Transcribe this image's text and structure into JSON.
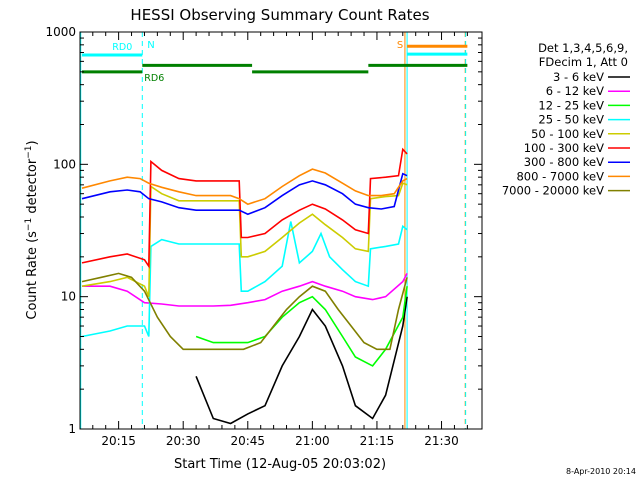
{
  "chart_data": {
    "type": "line",
    "title": "HESSI Observing Summary Count Rates",
    "xlabel": "Start Time (12-Aug-05 20:03:02)",
    "ylabel": "Count Rate (s⁻¹ detector⁻¹)",
    "ylabel_main": "Count Rate (s",
    "ylabel_sup1": "−1",
    "ylabel_mid": " detector",
    "ylabel_sup2": "−1",
    "ylabel_end": ")",
    "yscale": "log",
    "ylim": [
      1,
      1000
    ],
    "xlim_min": [
      3.03,
      68.4
    ],
    "xticks": [
      {
        "min": 12,
        "label": "20:15"
      },
      {
        "min": 27,
        "label": "20:30"
      },
      {
        "min": 42,
        "label": "20:45"
      },
      {
        "min": 57,
        "label": "21:00"
      },
      {
        "min": 72,
        "label": "21:15"
      },
      {
        "min": 87,
        "label": "21:30"
      }
    ],
    "yticks": [
      {
        "value": 1,
        "label": "1"
      },
      {
        "value": 10,
        "label": "10"
      },
      {
        "value": 100,
        "label": "100"
      },
      {
        "value": 1000,
        "label": "1000"
      }
    ],
    "legend_header": [
      "Det 1,3,4,5,6,9,",
      "FDecim 1, Att 0"
    ],
    "series": [
      {
        "name": "3 - 6 keV",
        "color": "#000000",
        "points": [
          [
            30,
            2.5
          ],
          [
            34,
            1.2
          ],
          [
            38,
            1.1
          ],
          [
            42,
            1.3
          ],
          [
            46,
            1.5
          ],
          [
            50,
            3
          ],
          [
            54,
            5
          ],
          [
            57,
            8
          ],
          [
            60,
            6
          ],
          [
            64,
            3
          ],
          [
            67,
            1.5
          ],
          [
            71,
            1.2
          ],
          [
            74,
            1.8
          ],
          [
            78,
            6
          ],
          [
            79,
            10
          ]
        ]
      },
      {
        "name": "6 - 12 keV",
        "color": "#ff00ff",
        "points": [
          [
            3.5,
            12
          ],
          [
            10,
            12
          ],
          [
            14,
            11
          ],
          [
            18,
            9
          ],
          [
            22,
            8.8
          ],
          [
            26,
            8.5
          ],
          [
            30,
            8.5
          ],
          [
            34,
            8.5
          ],
          [
            38,
            8.6
          ],
          [
            42,
            9
          ],
          [
            46,
            9.5
          ],
          [
            50,
            11
          ],
          [
            54,
            12
          ],
          [
            57,
            13
          ],
          [
            60,
            12
          ],
          [
            64,
            11
          ],
          [
            67,
            10
          ],
          [
            71,
            9.5
          ],
          [
            74,
            10
          ],
          [
            78,
            13
          ],
          [
            79,
            15
          ]
        ]
      },
      {
        "name": "12 - 25 keV",
        "color": "#00ff00",
        "points": [
          [
            30,
            5
          ],
          [
            34,
            4.5
          ],
          [
            38,
            4.5
          ],
          [
            42,
            4.5
          ],
          [
            46,
            5
          ],
          [
            50,
            7
          ],
          [
            54,
            9
          ],
          [
            57,
            10
          ],
          [
            60,
            8
          ],
          [
            64,
            5
          ],
          [
            67,
            3.5
          ],
          [
            71,
            3
          ],
          [
            74,
            4
          ],
          [
            78,
            7
          ],
          [
            79,
            12
          ]
        ]
      },
      {
        "name": "25 - 50 keV",
        "color": "#00ffff",
        "points": [
          [
            3.5,
            5
          ],
          [
            10,
            5.5
          ],
          [
            14,
            6
          ],
          [
            18,
            6
          ],
          [
            19,
            5
          ],
          [
            19.5,
            24
          ],
          [
            22,
            27
          ],
          [
            26,
            25
          ],
          [
            30,
            25
          ],
          [
            34,
            25
          ],
          [
            38,
            25
          ],
          [
            40,
            25
          ],
          [
            40.5,
            11
          ],
          [
            42,
            11
          ],
          [
            46,
            13
          ],
          [
            50,
            17
          ],
          [
            52,
            37
          ],
          [
            54,
            18
          ],
          [
            57,
            22
          ],
          [
            59,
            30
          ],
          [
            61,
            20
          ],
          [
            64,
            16
          ],
          [
            67,
            13
          ],
          [
            70,
            12
          ],
          [
            70.5,
            23
          ],
          [
            74,
            24
          ],
          [
            77,
            25
          ],
          [
            78,
            34
          ],
          [
            79,
            32
          ]
        ]
      },
      {
        "name": "50 - 100 keV",
        "color": "#cccc00",
        "points": [
          [
            3.5,
            12
          ],
          [
            10,
            13
          ],
          [
            14,
            14
          ],
          [
            18,
            12
          ],
          [
            19,
            10
          ],
          [
            19.5,
            68
          ],
          [
            22,
            60
          ],
          [
            26,
            53
          ],
          [
            30,
            53
          ],
          [
            34,
            53
          ],
          [
            38,
            53
          ],
          [
            40,
            53
          ],
          [
            40.5,
            20
          ],
          [
            42,
            20
          ],
          [
            46,
            22
          ],
          [
            50,
            28
          ],
          [
            54,
            36
          ],
          [
            57,
            42
          ],
          [
            60,
            35
          ],
          [
            64,
            28
          ],
          [
            67,
            23
          ],
          [
            70,
            22
          ],
          [
            70.5,
            55
          ],
          [
            74,
            57
          ],
          [
            77,
            58
          ],
          [
            78,
            72
          ],
          [
            79,
            70
          ]
        ]
      },
      {
        "name": "100 - 300 keV",
        "color": "#ff0000",
        "points": [
          [
            3.5,
            18
          ],
          [
            10,
            20
          ],
          [
            14,
            21
          ],
          [
            18,
            19
          ],
          [
            19,
            17
          ],
          [
            19.5,
            105
          ],
          [
            22,
            90
          ],
          [
            26,
            78
          ],
          [
            30,
            75
          ],
          [
            34,
            75
          ],
          [
            38,
            75
          ],
          [
            40,
            75
          ],
          [
            40.5,
            28
          ],
          [
            42,
            28
          ],
          [
            46,
            30
          ],
          [
            50,
            38
          ],
          [
            54,
            45
          ],
          [
            57,
            50
          ],
          [
            60,
            46
          ],
          [
            64,
            38
          ],
          [
            67,
            32
          ],
          [
            70,
            30
          ],
          [
            70.5,
            78
          ],
          [
            74,
            80
          ],
          [
            77,
            82
          ],
          [
            78,
            130
          ],
          [
            79,
            120
          ]
        ]
      },
      {
        "name": "300 - 800 keV",
        "color": "#0000ff",
        "points": [
          [
            3.5,
            55
          ],
          [
            10,
            62
          ],
          [
            14,
            64
          ],
          [
            17,
            62
          ],
          [
            19,
            55
          ],
          [
            22,
            52
          ],
          [
            26,
            47
          ],
          [
            30,
            45
          ],
          [
            34,
            45
          ],
          [
            38,
            45
          ],
          [
            40,
            45
          ],
          [
            42,
            42
          ],
          [
            46,
            47
          ],
          [
            50,
            58
          ],
          [
            54,
            70
          ],
          [
            57,
            75
          ],
          [
            60,
            70
          ],
          [
            64,
            60
          ],
          [
            67,
            50
          ],
          [
            70,
            47
          ],
          [
            73,
            46
          ],
          [
            76,
            48
          ],
          [
            78,
            85
          ],
          [
            79,
            82
          ]
        ]
      },
      {
        "name": "800 - 7000 keV",
        "color": "#ff8800",
        "points": [
          [
            3.5,
            66
          ],
          [
            10,
            75
          ],
          [
            14,
            80
          ],
          [
            17,
            78
          ],
          [
            19,
            72
          ],
          [
            22,
            67
          ],
          [
            26,
            62
          ],
          [
            30,
            58
          ],
          [
            34,
            58
          ],
          [
            38,
            58
          ],
          [
            40,
            55
          ],
          [
            42,
            50
          ],
          [
            46,
            55
          ],
          [
            50,
            68
          ],
          [
            54,
            82
          ],
          [
            57,
            92
          ],
          [
            60,
            86
          ],
          [
            64,
            72
          ],
          [
            67,
            63
          ],
          [
            70,
            58
          ],
          [
            73,
            58
          ],
          [
            76,
            60
          ],
          [
            78,
            75
          ],
          [
            79,
            78
          ]
        ]
      },
      {
        "name": "7000 - 20000 keV",
        "color": "#808000",
        "points": [
          [
            3.5,
            13
          ],
          [
            8,
            14
          ],
          [
            12,
            15
          ],
          [
            15,
            14
          ],
          [
            18,
            11
          ],
          [
            21,
            7
          ],
          [
            24,
            5
          ],
          [
            27,
            4
          ],
          [
            30,
            4
          ],
          [
            34,
            4
          ],
          [
            38,
            4
          ],
          [
            41,
            4
          ],
          [
            45,
            4.5
          ],
          [
            48,
            6
          ],
          [
            51,
            8
          ],
          [
            54,
            10
          ],
          [
            57,
            12
          ],
          [
            60,
            11
          ],
          [
            63,
            8
          ],
          [
            66,
            6
          ],
          [
            69,
            4.5
          ],
          [
            72,
            4
          ],
          [
            75,
            4
          ],
          [
            77,
            8
          ],
          [
            79,
            14
          ]
        ]
      }
    ],
    "attenuator_bars": [
      {
        "label": "RD0",
        "color": "#00ffff",
        "x0": 3.5,
        "x1": 17.5,
        "y": 670
      },
      {
        "label": "RD6",
        "color": "#008000",
        "x0": 3.5,
        "x1": 17.5,
        "y": 500
      },
      {
        "label": "",
        "color": "#008000",
        "x0": 17.5,
        "x1": 43,
        "y": 560
      },
      {
        "label": "",
        "color": "#008000",
        "x0": 43,
        "x1": 70,
        "y": 500
      },
      {
        "label": "",
        "color": "#008000",
        "x0": 70,
        "x1": 93,
        "y": 560
      },
      {
        "label": "",
        "color": "#00ffff",
        "x0": 79,
        "x1": 93,
        "y": 680
      },
      {
        "label": "",
        "color": "#ff8800",
        "x0": 79,
        "x1": 93,
        "y": 780
      }
    ],
    "event_lines": [
      {
        "label": "N",
        "color": "#00ffff",
        "x": 17.5,
        "dashed": true
      },
      {
        "label": "S",
        "color": "#ff8800",
        "x": 78.5,
        "dashed": false
      },
      {
        "label": "",
        "color": "#00ffff",
        "x": 79,
        "dashed": false
      },
      {
        "label": "",
        "color": "#ff8800",
        "x": 92.5,
        "dashed": true
      },
      {
        "label": "",
        "color": "#00ffff",
        "x": 92.6,
        "dashed": true
      },
      {
        "label": "",
        "color": "#00ffff",
        "x": 3.2,
        "dashed": false
      }
    ],
    "footer_date": "8-Apr-2010 20:14"
  }
}
